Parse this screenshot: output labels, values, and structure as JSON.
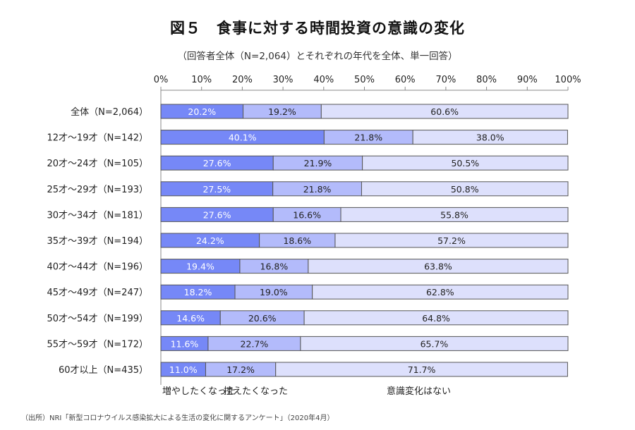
{
  "chart_data": {
    "type": "bar",
    "orientation": "horizontal",
    "stacked": true,
    "percent_stacked": true,
    "title": "図５　食事に対する時間投資の意識の変化",
    "subtitle": "（回答者全体（N=2,064）とそれぞれの年代を全体、単一回答）",
    "xlabel": "",
    "ylabel": "",
    "xlim": [
      0,
      100
    ],
    "x_ticks": [
      "0%",
      "10%",
      "20%",
      "30%",
      "40%",
      "50%",
      "60%",
      "70%",
      "80%",
      "90%",
      "100%"
    ],
    "grid": false,
    "legend_position": "bottom",
    "categories": [
      "全体（N=2,064）",
      "12才～19才（N=142）",
      "20才～24才（N=105）",
      "25才～29才（N=193）",
      "30才～34才（N=181）",
      "35才～39才（N=194）",
      "40才～44才（N=196）",
      "45才～49才（N=247）",
      "50才～54才（N=199）",
      "55才～59才（N=172）",
      "60才以上（N=435）"
    ],
    "series": [
      {
        "name": "増やしたくなった",
        "color": "#7688f7",
        "label_color": "#ffffff",
        "values": [
          20.2,
          40.1,
          27.6,
          27.5,
          27.6,
          24.2,
          19.4,
          18.2,
          14.6,
          11.6,
          11.0
        ]
      },
      {
        "name": "控えたくなった",
        "color": "#b3bbfb",
        "label_color": "#222222",
        "values": [
          19.2,
          21.8,
          21.9,
          21.8,
          16.6,
          18.6,
          16.8,
          19.0,
          20.6,
          22.7,
          17.2
        ]
      },
      {
        "name": "意識変化はない",
        "color": "#dde0fc",
        "label_color": "#222222",
        "values": [
          60.6,
          38.0,
          50.5,
          50.8,
          55.8,
          57.2,
          63.8,
          62.8,
          64.8,
          65.7,
          71.7
        ]
      }
    ]
  },
  "source_note": "（出所）NRI「新型コロナウイルス感染拡大による生活の変化に関するアンケート」（2020年4月）"
}
